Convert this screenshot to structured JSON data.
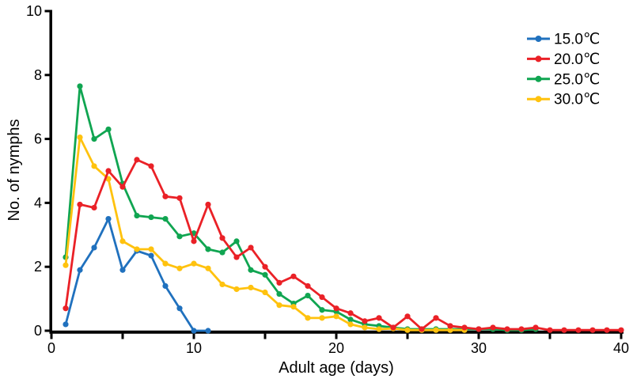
{
  "chart_data": {
    "type": "line",
    "title": "",
    "xlabel": "Adult age (days)",
    "ylabel": "No. of nymphs",
    "xlim": [
      0,
      40
    ],
    "ylim": [
      0,
      10
    ],
    "grid": false,
    "legend_position": "top-right",
    "x_major_ticks": [
      0,
      10,
      20,
      30,
      40
    ],
    "x_major_tick_labels": [
      "0",
      "10",
      "20",
      "30",
      "40"
    ],
    "x_minor_ticks": [
      5,
      15,
      25,
      35
    ],
    "y_major_ticks": [
      0,
      2,
      4,
      6,
      8,
      10
    ],
    "y_major_tick_labels": [
      "0",
      "2",
      "4",
      "6",
      "8",
      "10"
    ],
    "series": [
      {
        "name": "15.0℃",
        "color": "#2071BE",
        "x": [
          1,
          2,
          3,
          4,
          5,
          6,
          7,
          8,
          9,
          10,
          11
        ],
        "values": [
          0.2,
          1.9,
          2.6,
          3.5,
          1.9,
          2.5,
          2.35,
          1.4,
          0.7,
          0,
          0
        ]
      },
      {
        "name": "20.0℃",
        "color": "#EA2127",
        "x": [
          1,
          2,
          3,
          4,
          5,
          6,
          7,
          8,
          9,
          10,
          11,
          12,
          13,
          14,
          15,
          16,
          17,
          18,
          19,
          20,
          21,
          22,
          23,
          24,
          25,
          26,
          27,
          28,
          29,
          30,
          31,
          32,
          33,
          34,
          35,
          36,
          37,
          38,
          39,
          40
        ],
        "values": [
          0.7,
          3.95,
          3.85,
          5.0,
          4.5,
          5.35,
          5.15,
          4.2,
          4.15,
          2.8,
          3.95,
          2.9,
          2.3,
          2.6,
          2.0,
          1.5,
          1.7,
          1.4,
          1.05,
          0.7,
          0.55,
          0.3,
          0.4,
          0.1,
          0.45,
          0.05,
          0.4,
          0.15,
          0.1,
          0.05,
          0.1,
          0.05,
          0.05,
          0.1,
          0.02,
          0.02,
          0.02,
          0.02,
          0.02,
          0.02
        ]
      },
      {
        "name": "25.0℃",
        "color": "#10A551",
        "x": [
          1,
          2,
          3,
          4,
          5,
          6,
          7,
          8,
          9,
          10,
          11,
          12,
          13,
          14,
          15,
          16,
          17,
          18,
          19,
          20,
          21,
          22,
          23,
          24,
          25,
          26,
          27,
          28,
          29,
          30,
          31,
          32,
          33,
          34
        ],
        "values": [
          2.3,
          7.65,
          6.0,
          6.3,
          4.6,
          3.6,
          3.55,
          3.5,
          2.95,
          3.05,
          2.55,
          2.45,
          2.8,
          1.9,
          1.75,
          1.15,
          0.85,
          1.1,
          0.65,
          0.6,
          0.35,
          0.2,
          0.15,
          0.1,
          0.05,
          0.05,
          0.05,
          0.05,
          0.05,
          0.05,
          0.05,
          0.02,
          0.02,
          0.05
        ]
      },
      {
        "name": "30.0℃",
        "color": "#FFC20E",
        "x": [
          1,
          2,
          3,
          4,
          5,
          6,
          7,
          8,
          9,
          10,
          11,
          12,
          13,
          14,
          15,
          16,
          17,
          18,
          19,
          20,
          21,
          22,
          23,
          24,
          25,
          26,
          27,
          28,
          29
        ],
        "values": [
          2.05,
          6.05,
          5.15,
          4.75,
          2.8,
          2.55,
          2.55,
          2.1,
          1.95,
          2.1,
          1.95,
          1.45,
          1.3,
          1.35,
          1.2,
          0.8,
          0.75,
          0.4,
          0.4,
          0.45,
          0.2,
          0.1,
          0.05,
          0.07,
          0.02,
          0.02,
          0.02,
          0.02,
          0.02
        ]
      }
    ],
    "legend": [
      {
        "label": "15.0℃",
        "color": "#2071BE"
      },
      {
        "label": "20.0℃",
        "color": "#EA2127"
      },
      {
        "label": "25.0℃",
        "color": "#10A551"
      },
      {
        "label": "30.0℃",
        "color": "#FFC20E"
      }
    ],
    "axis_color": "#000000"
  }
}
